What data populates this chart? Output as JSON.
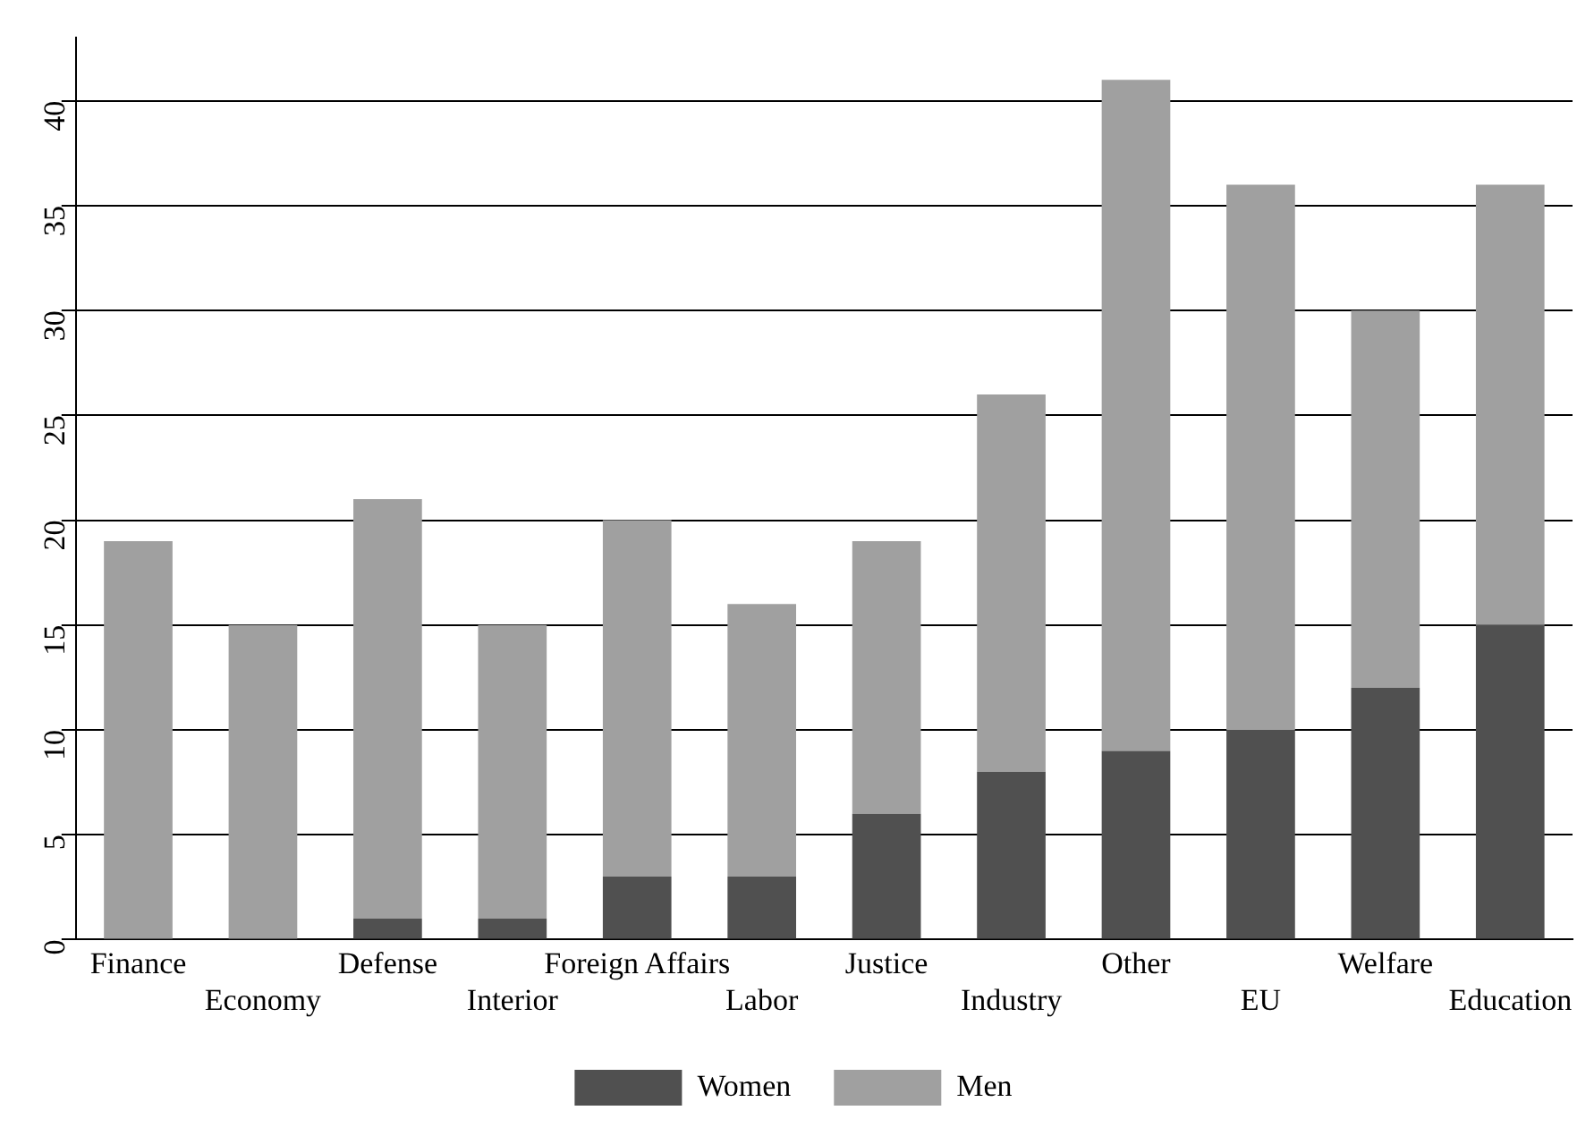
{
  "chart_data": {
    "type": "bar",
    "stacked": true,
    "categories": [
      "Finance",
      "Economy",
      "Defense",
      "Interior",
      "Foreign Affairs",
      "Labor",
      "Justice",
      "Industry",
      "Other",
      "EU",
      "Welfare",
      "Education"
    ],
    "series": [
      {
        "name": "Women",
        "color": "#505050",
        "values": [
          0,
          0,
          1,
          1,
          3,
          3,
          6,
          8,
          9,
          10,
          12,
          15
        ]
      },
      {
        "name": "Men",
        "color": "#a0a0a0",
        "values": [
          19,
          15,
          20,
          14,
          17,
          13,
          13,
          18,
          32,
          26,
          18,
          21
        ]
      }
    ],
    "ylim": [
      0,
      43
    ],
    "yticks": [
      0,
      5,
      10,
      15,
      20,
      25,
      30,
      35,
      40
    ],
    "grid": "y",
    "legend": "bottom"
  }
}
